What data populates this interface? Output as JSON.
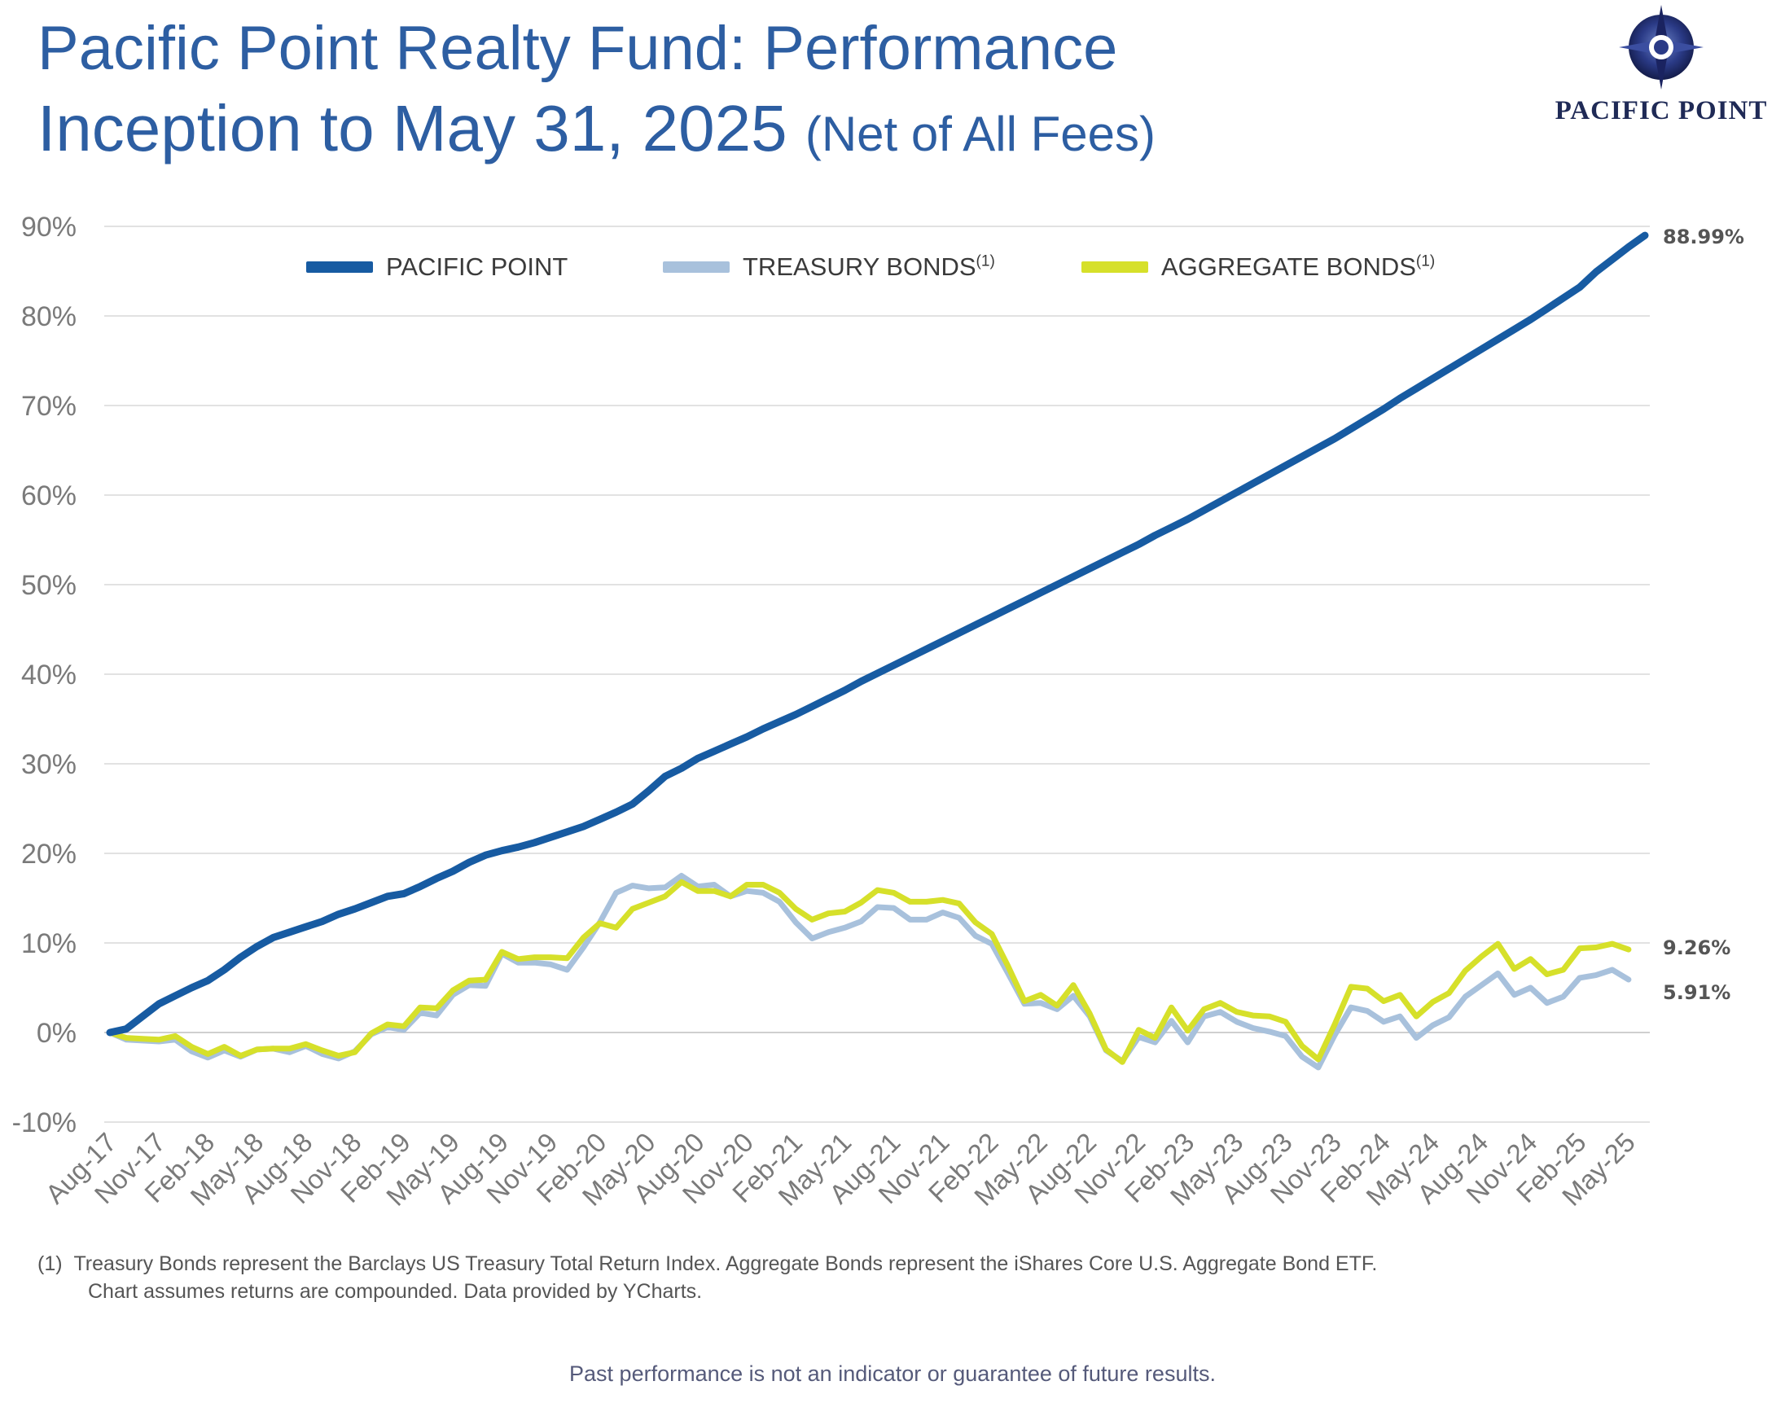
{
  "header": {
    "title": "Pacific Point Realty Fund: Performance",
    "subtitle_main": "Inception to May 31, 2025",
    "subtitle_note": "(Net of All Fees)"
  },
  "logo": {
    "wordmark": "PACIFIC POINT",
    "icon": "compass-star-icon"
  },
  "colors": {
    "pacific_point": "#175ba2",
    "treasury": "#a8c1dc",
    "aggregate": "#d6e02a",
    "title": "#2d5ea2"
  },
  "legend": {
    "pacific_point": "PACIFIC POINT",
    "treasury": "TREASURY BONDS",
    "treasury_note": "(1)",
    "aggregate": "AGGREGATE BONDS",
    "aggregate_note": "(1)"
  },
  "chart_data": {
    "type": "line",
    "title": "",
    "xlabel": "",
    "ylabel": "",
    "ylim": [
      -10,
      90
    ],
    "yticks": [
      -10,
      0,
      10,
      20,
      30,
      40,
      50,
      60,
      70,
      80,
      90
    ],
    "ytick_labels": [
      "-10%",
      "0%",
      "10%",
      "20%",
      "30%",
      "40%",
      "50%",
      "60%",
      "70%",
      "80%",
      "90%"
    ],
    "xtick_labels": [
      "Aug-17",
      "Nov-17",
      "Feb-18",
      "May-18",
      "Aug-18",
      "Nov-18",
      "Feb-19",
      "May-19",
      "Aug-19",
      "Nov-19",
      "Feb-20",
      "May-20",
      "Aug-20",
      "Nov-20",
      "Feb-21",
      "May-21",
      "Aug-21",
      "Nov-21",
      "Feb-22",
      "May-22",
      "Aug-22",
      "Nov-22",
      "Feb-23",
      "May-23",
      "Aug-23",
      "Nov-23",
      "Feb-24",
      "May-24",
      "Aug-24",
      "Nov-24",
      "Feb-25",
      "May-25"
    ],
    "grid": true,
    "legend_position": "top",
    "series": [
      {
        "name": "PACIFIC POINT",
        "end_label": "88.99%",
        "values": [
          0,
          0.4,
          1.8,
          3.2,
          4.1,
          5.0,
          5.8,
          7.0,
          8.4,
          9.6,
          10.6,
          11.2,
          11.8,
          12.4,
          13.2,
          13.8,
          14.5,
          15.2,
          15.5,
          16.3,
          17.2,
          18.0,
          19.0,
          19.8,
          20.3,
          20.7,
          21.2,
          21.8,
          22.4,
          23.0,
          23.8,
          24.6,
          25.5,
          27.0,
          28.6,
          29.5,
          30.6,
          31.4,
          32.2,
          33.0,
          33.9,
          34.7,
          35.5,
          36.4,
          37.3,
          38.2,
          39.2,
          40.1,
          41.0,
          41.9,
          42.8,
          43.7,
          44.6,
          45.5,
          46.4,
          47.3,
          48.2,
          49.1,
          50.0,
          50.9,
          51.8,
          52.7,
          53.6,
          54.5,
          55.5,
          56.4,
          57.3,
          58.3,
          59.3,
          60.3,
          61.3,
          62.3,
          63.3,
          64.3,
          65.3,
          66.3,
          67.4,
          68.5,
          69.6,
          70.8,
          71.9,
          73.0,
          74.1,
          75.2,
          76.3,
          77.4,
          78.5,
          79.6,
          80.8,
          82.0,
          83.2,
          84.9,
          86.3,
          87.7,
          88.99
        ]
      },
      {
        "name": "TREASURY BONDS",
        "end_label": "5.91%",
        "values": [
          0,
          -0.8,
          -0.9,
          -1.0,
          -0.8,
          -2.1,
          -2.8,
          -2.0,
          -2.7,
          -1.9,
          -1.8,
          -2.2,
          -1.5,
          -2.4,
          -2.9,
          -2.1,
          -0.2,
          0.6,
          0.3,
          2.2,
          1.9,
          4.2,
          5.3,
          5.2,
          8.8,
          7.8,
          7.8,
          7.6,
          7.0,
          9.5,
          12.3,
          15.6,
          16.4,
          16.1,
          16.2,
          17.5,
          16.3,
          16.5,
          15.2,
          15.8,
          15.6,
          14.6,
          12.3,
          10.5,
          11.2,
          11.7,
          12.4,
          14.0,
          13.9,
          12.6,
          12.6,
          13.4,
          12.8,
          10.8,
          9.9,
          6.6,
          3.2,
          3.3,
          2.6,
          4.1,
          1.8,
          -2.0,
          -3.2,
          -0.5,
          -1.1,
          1.3,
          -1.1,
          1.8,
          2.3,
          1.2,
          0.5,
          0.1,
          -0.4,
          -2.7,
          -3.9,
          -0.3,
          2.8,
          2.4,
          1.2,
          1.8,
          -0.6,
          0.8,
          1.7,
          4.0,
          5.3,
          6.6,
          4.2,
          5.0,
          3.3,
          4.0,
          6.1,
          6.4,
          7.0,
          5.91
        ]
      },
      {
        "name": "AGGREGATE BONDS",
        "end_label": "9.26%",
        "values": [
          0,
          -0.6,
          -0.7,
          -0.8,
          -0.4,
          -1.6,
          -2.4,
          -1.6,
          -2.6,
          -1.9,
          -1.8,
          -1.8,
          -1.3,
          -2.0,
          -2.6,
          -2.2,
          -0.1,
          0.9,
          0.7,
          2.8,
          2.7,
          4.7,
          5.8,
          5.9,
          9.0,
          8.2,
          8.4,
          8.4,
          8.3,
          10.6,
          12.2,
          11.7,
          13.8,
          14.5,
          15.2,
          16.8,
          15.8,
          15.8,
          15.2,
          16.5,
          16.5,
          15.6,
          13.8,
          12.6,
          13.3,
          13.5,
          14.5,
          15.9,
          15.6,
          14.6,
          14.6,
          14.8,
          14.4,
          12.3,
          11.0,
          7.4,
          3.5,
          4.2,
          3.0,
          5.3,
          2.1,
          -1.9,
          -3.3,
          0.3,
          -0.6,
          2.8,
          0.2,
          2.6,
          3.3,
          2.3,
          1.9,
          1.8,
          1.2,
          -1.5,
          -3.0,
          0.9,
          5.1,
          4.9,
          3.5,
          4.2,
          1.8,
          3.4,
          4.4,
          6.9,
          8.5,
          9.9,
          7.1,
          8.2,
          6.5,
          7.0,
          9.4,
          9.5,
          9.9,
          9.26
        ]
      }
    ]
  },
  "footnote": {
    "marker": "(1)",
    "line1": "Treasury Bonds represent the Barclays US Treasury Total Return Index. Aggregate Bonds represent the iShares Core U.S. Aggregate Bond ETF.",
    "line2": "Chart assumes returns are compounded. Data provided by YCharts."
  },
  "disclaimer": "Past performance is not an indicator or guarantee of future results."
}
